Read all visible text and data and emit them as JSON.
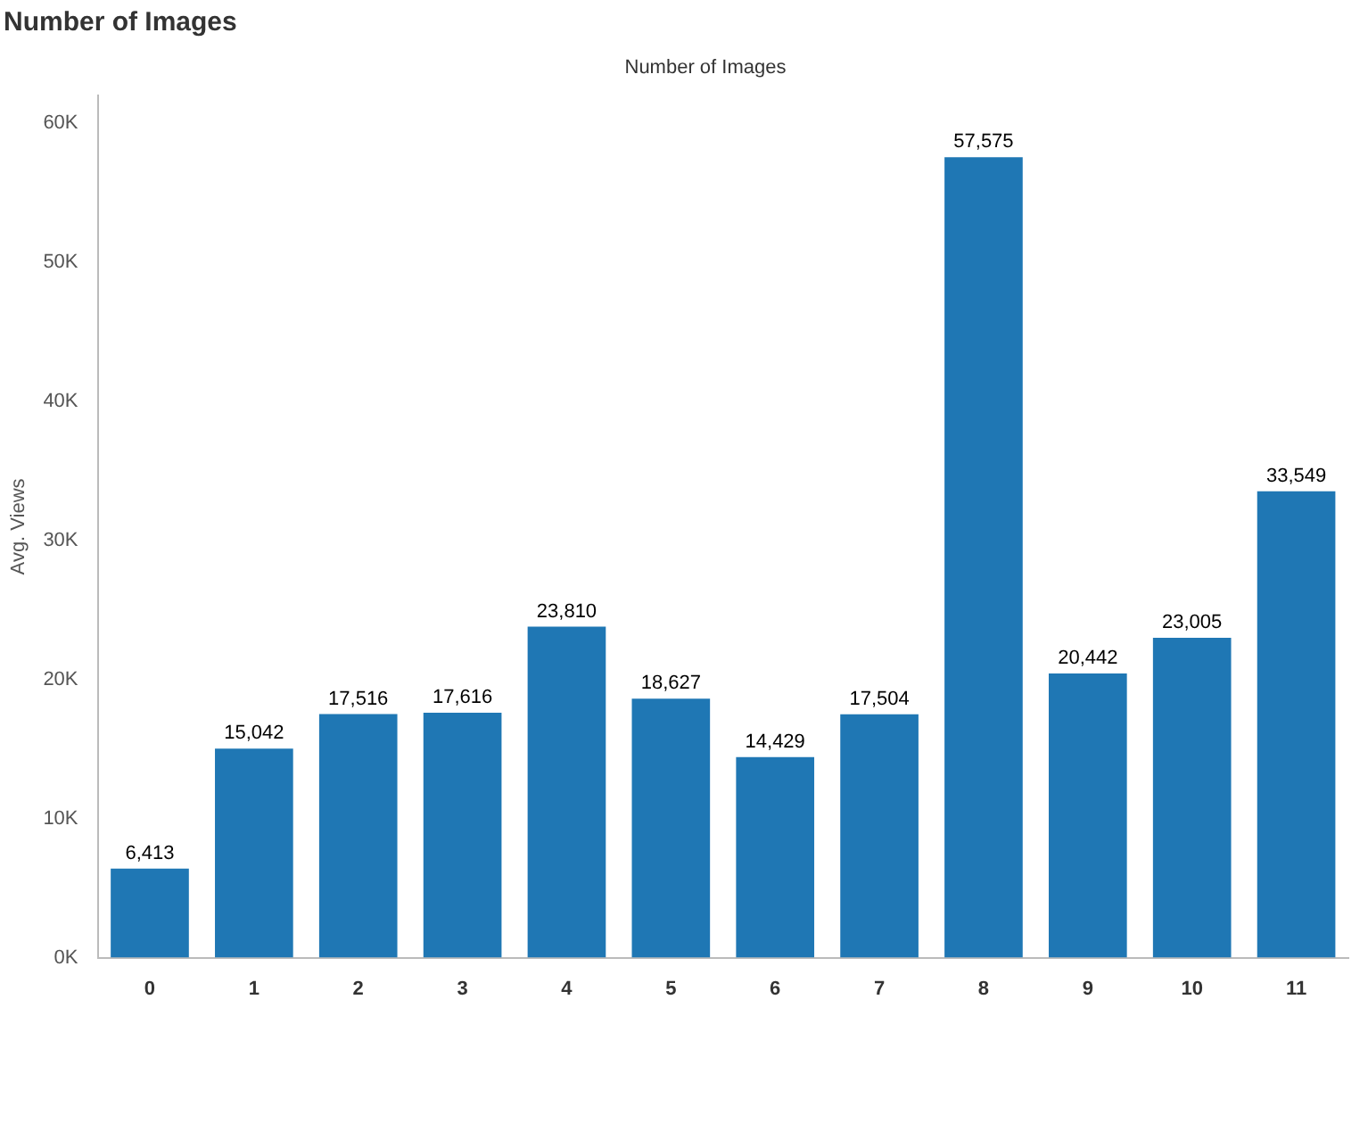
{
  "chart_data": {
    "type": "bar",
    "title": "Number of Images",
    "subtitle": "Number of Images",
    "ylabel": "Avg. Views",
    "categories": [
      "0",
      "1",
      "2",
      "3",
      "4",
      "5",
      "6",
      "7",
      "8",
      "9",
      "10",
      "11"
    ],
    "values": [
      6413,
      15042,
      17516,
      17616,
      23810,
      18627,
      14429,
      17504,
      57575,
      20442,
      23005,
      33549
    ],
    "value_labels": [
      "6,413",
      "15,042",
      "17,516",
      "17,616",
      "23,810",
      "18,627",
      "14,429",
      "17,504",
      "57,575",
      "20,442",
      "23,005",
      "33,549"
    ],
    "color": "#1f77b4",
    "ylim": [
      0,
      62000
    ],
    "yticks": [
      {
        "value": 0,
        "label": "0K"
      },
      {
        "value": 10000,
        "label": "10K"
      },
      {
        "value": 20000,
        "label": "20K"
      },
      {
        "value": 30000,
        "label": "30K"
      },
      {
        "value": 40000,
        "label": "40K"
      },
      {
        "value": 50000,
        "label": "50K"
      },
      {
        "value": 60000,
        "label": "60K"
      }
    ],
    "grid": false,
    "legend": false
  }
}
